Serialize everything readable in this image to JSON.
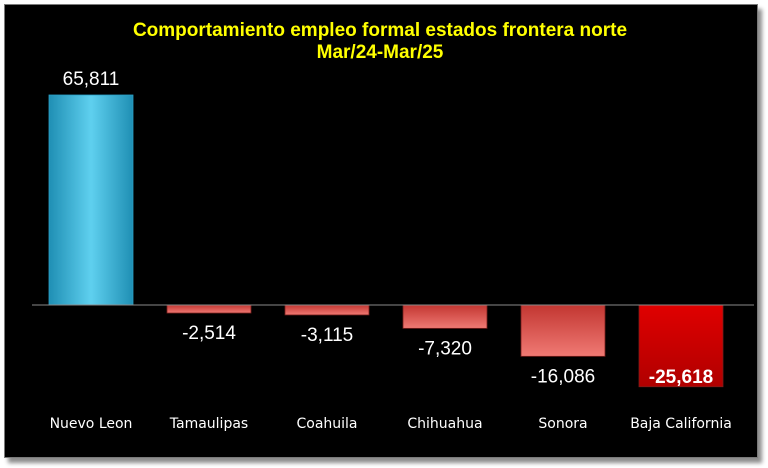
{
  "chart_data": {
    "type": "bar",
    "title_line1": "Comportamiento empleo formal estados frontera norte",
    "title_line2": "Mar/24-Mar/25",
    "categories": [
      "Nuevo Leon",
      "Tamaulipas",
      "Coahuila",
      "Chihuahua",
      "Sonora",
      "Baja California"
    ],
    "values": [
      65811,
      -2514,
      -3115,
      -7320,
      -16086,
      -25618
    ],
    "value_labels": [
      "65,811",
      "-2,514",
      "-3,115",
      "-7,320",
      "-16,086",
      "-25,618"
    ],
    "highlight_index": 5,
    "colors": {
      "positive": "#33b8dc",
      "negative": "#d9443f",
      "highlight": "#cc0000",
      "background": "#000000",
      "title": "#ffff00",
      "text": "#ffffff"
    },
    "grid": false,
    "legend": "none"
  }
}
